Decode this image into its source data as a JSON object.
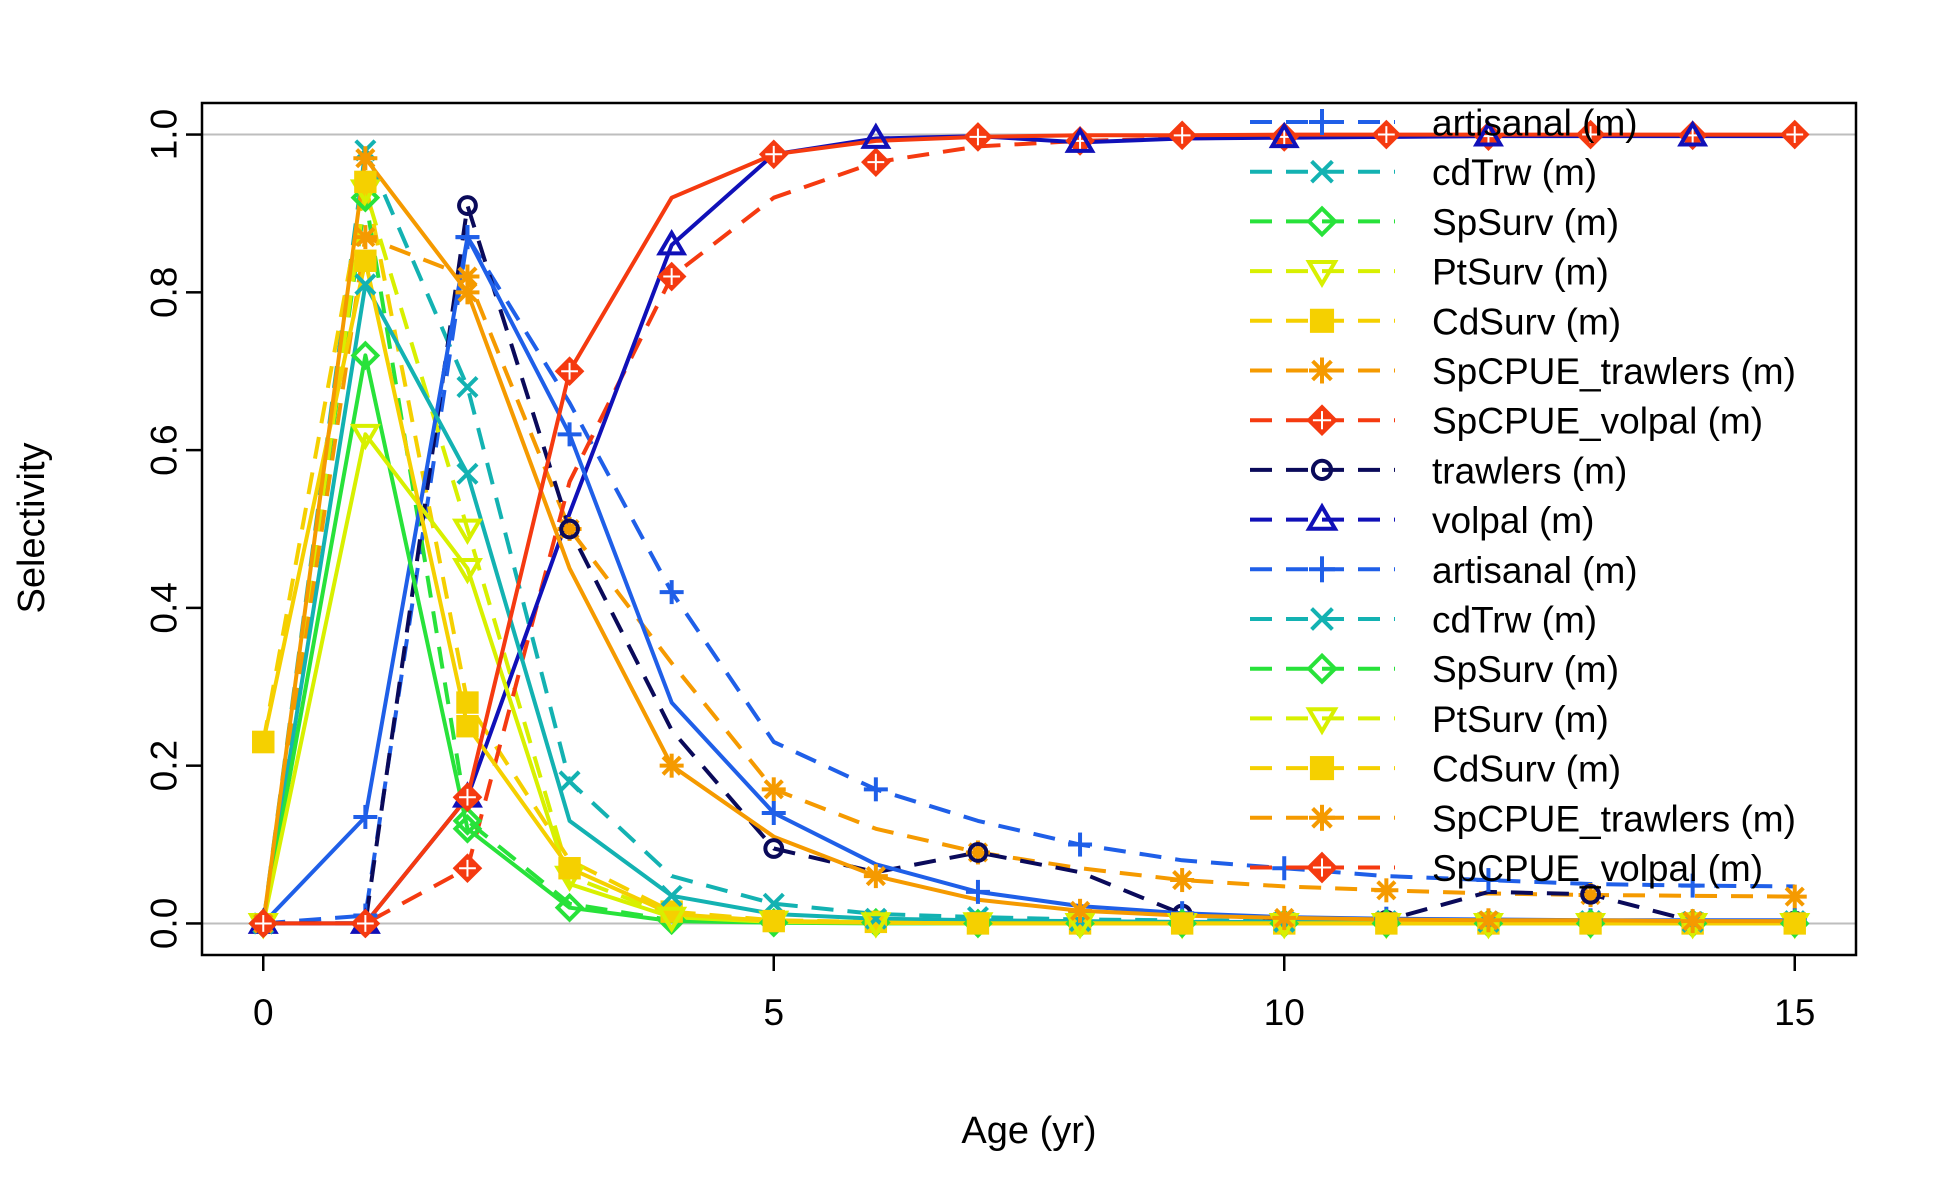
{
  "chart_data": {
    "type": "line",
    "title": "",
    "xlabel": "Age (yr)",
    "ylabel": "Selectivity",
    "xlim": [
      -0.6,
      15.6
    ],
    "ylim": [
      -0.04,
      1.04
    ],
    "xticks": [
      0,
      5,
      10,
      15
    ],
    "yticks": [
      0.0,
      0.2,
      0.4,
      0.6,
      0.8,
      1.0
    ],
    "xtick_labels": [
      "0",
      "5",
      "10",
      "15"
    ],
    "ytick_labels": [
      "0.0",
      "0.2",
      "0.4",
      "0.6",
      "0.8",
      "1.0"
    ],
    "reference_lines": [
      0,
      1
    ],
    "grid": false,
    "legend_position": "top-right",
    "x": [
      0,
      1,
      2,
      3,
      4,
      5,
      6,
      7,
      8,
      9,
      10,
      11,
      12,
      13,
      14,
      15
    ],
    "series": [
      {
        "name": "artisanal (m)",
        "color": "#1f5fe8",
        "marker": "plus",
        "dash": "dashed",
        "values": [
          0.0,
          0.01,
          0.87,
          0.66,
          0.42,
          0.23,
          0.17,
          0.13,
          0.1,
          0.08,
          0.07,
          0.06,
          0.055,
          0.05,
          0.048,
          0.047
        ]
      },
      {
        "name": "cdTrw (m)",
        "color": "#13b2b2",
        "marker": "x",
        "dash": "dashed",
        "values": [
          0.0,
          0.98,
          0.68,
          0.18,
          0.06,
          0.025,
          0.012,
          0.008,
          0.005,
          0.004,
          0.003,
          0.003,
          0.003,
          0.003,
          0.003,
          0.003
        ]
      },
      {
        "name": "SpSurv (m)",
        "color": "#28e23a",
        "marker": "diamond",
        "dash": "dashed",
        "values": [
          0.0,
          0.92,
          0.13,
          0.025,
          0.004,
          0.002,
          0.001,
          0.001,
          0.0,
          0.0,
          0.0,
          0.0,
          0.0,
          0.0,
          0.0,
          0.0
        ]
      },
      {
        "name": "PtSurv (m)",
        "color": "#d8f000",
        "marker": "triangle-down",
        "dash": "dashed",
        "values": [
          0.0,
          0.93,
          0.5,
          0.06,
          0.01,
          0.003,
          0.002,
          0.001,
          0.001,
          0.0,
          0.0,
          0.0,
          0.0,
          0.0,
          0.0,
          0.0
        ]
      },
      {
        "name": "CdSurv (m)",
        "color": "#f5d000",
        "marker": "square",
        "dash": "dashed",
        "values": [
          0.23,
          0.94,
          0.28,
          0.08,
          0.015,
          0.004,
          0.002,
          0.001,
          0.0,
          0.0,
          0.0,
          0.0,
          0.0,
          0.0,
          0.0,
          0.0
        ]
      },
      {
        "name": "SpCPUE_trawlers (m)",
        "color": "#f59a00",
        "marker": "asterisk",
        "dash": "dashed",
        "values": [
          0.0,
          0.87,
          0.82,
          0.5,
          0.33,
          0.17,
          0.12,
          0.09,
          0.07,
          0.055,
          0.047,
          0.042,
          0.038,
          0.036,
          0.035,
          0.034
        ]
      },
      {
        "name": "SpCPUE_volpal (m)",
        "color": "#f53a10",
        "marker": "diamond-plus",
        "dash": "dashed",
        "values": [
          0.0,
          0.0,
          0.07,
          0.56,
          0.82,
          0.92,
          0.965,
          0.985,
          0.992,
          0.995,
          0.997,
          0.998,
          0.998,
          0.999,
          0.999,
          0.999
        ]
      },
      {
        "name": "trawlers (m)",
        "color": "#0a0a5a",
        "marker": "circle",
        "dash": "dashed",
        "values": [
          0.0,
          0.0,
          0.91,
          0.5,
          0.245,
          0.095,
          0.065,
          0.09,
          0.065,
          0.012,
          0.006,
          0.004,
          0.04,
          0.037,
          0.003,
          0.003
        ]
      },
      {
        "name": "volpal (m)",
        "color": "#1010b8",
        "marker": "triangle-up",
        "dash": "dashed",
        "values": [
          0.0,
          0.0,
          0.16,
          0.52,
          0.86,
          0.975,
          0.995,
          0.998,
          0.99,
          0.995,
          0.996,
          0.997,
          0.998,
          0.998,
          0.998,
          0.998
        ]
      },
      {
        "name": "artisanal (m)",
        "color": "#1f5fe8",
        "marker": "plus",
        "dash": "dashed",
        "values": [
          0.0,
          0.135,
          0.87,
          0.62,
          0.28,
          0.14,
          0.075,
          0.04,
          0.022,
          0.013,
          0.008,
          0.006,
          0.005,
          0.004,
          0.004,
          0.004
        ]
      },
      {
        "name": "cdTrw (m)",
        "color": "#13b2b2",
        "marker": "x",
        "dash": "dashed",
        "values": [
          0.0,
          0.81,
          0.57,
          0.13,
          0.035,
          0.012,
          0.006,
          0.004,
          0.003,
          0.002,
          0.002,
          0.002,
          0.002,
          0.002,
          0.002,
          0.002
        ]
      },
      {
        "name": "SpSurv (m)",
        "color": "#28e23a",
        "marker": "diamond",
        "dash": "dashed",
        "values": [
          0.0,
          0.72,
          0.12,
          0.02,
          0.003,
          0.001,
          0.0,
          0.0,
          0.0,
          0.0,
          0.0,
          0.0,
          0.0,
          0.0,
          0.0,
          0.0
        ]
      },
      {
        "name": "PtSurv (m)",
        "color": "#d8f000",
        "marker": "triangle-down",
        "dash": "dashed",
        "values": [
          0.0,
          0.62,
          0.45,
          0.05,
          0.008,
          0.002,
          0.001,
          0.0,
          0.0,
          0.0,
          0.0,
          0.0,
          0.0,
          0.0,
          0.0,
          0.0
        ]
      },
      {
        "name": "CdSurv (m)",
        "color": "#f5d000",
        "marker": "square",
        "dash": "dashed",
        "values": [
          0.23,
          0.84,
          0.25,
          0.07,
          0.012,
          0.003,
          0.001,
          0.0,
          0.0,
          0.0,
          0.0,
          0.0,
          0.0,
          0.0,
          0.0,
          0.0
        ]
      },
      {
        "name": "SpCPUE_trawlers (m)",
        "color": "#f59a00",
        "marker": "asterisk",
        "dash": "dashed",
        "values": [
          0.0,
          0.97,
          0.8,
          0.45,
          0.2,
          0.11,
          0.06,
          0.03,
          0.016,
          0.01,
          0.007,
          0.005,
          0.004,
          0.004,
          0.003,
          0.003
        ]
      },
      {
        "name": "SpCPUE_volpal (m)",
        "color": "#f53a10",
        "marker": "diamond-plus",
        "dash": "dashed",
        "values": [
          0.0,
          0.0,
          0.16,
          0.7,
          0.92,
          0.975,
          0.992,
          0.997,
          0.999,
          0.999,
          1.0,
          1.0,
          1.0,
          1.0,
          1.0,
          1.0
        ]
      }
    ],
    "legend_entries": [
      "artisanal (m)",
      "cdTrw (m)",
      "SpSurv (m)",
      "PtSurv (m)",
      "CdSurv (m)",
      "SpCPUE_trawlers (m)",
      "SpCPUE_volpal (m)",
      "trawlers (m)",
      "volpal (m)",
      "artisanal (m)",
      "cdTrw (m)",
      "SpSurv (m)",
      "PtSurv (m)",
      "CdSurv (m)",
      "SpCPUE_trawlers (m)",
      "SpCPUE_volpal (m)"
    ]
  }
}
